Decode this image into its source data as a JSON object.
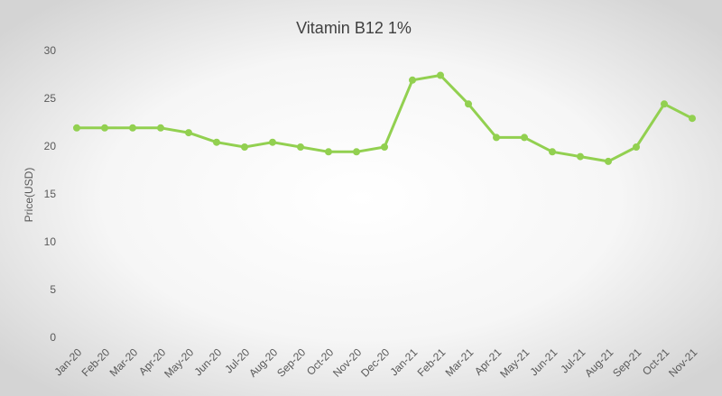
{
  "chart_data": {
    "type": "line",
    "title": "Vitamin B12 1%",
    "y_label": "Price(USD)",
    "categories": [
      "Jan-20",
      "Feb-20",
      "Mar-20",
      "Apr-20",
      "May-20",
      "Jun-20",
      "Jul-20",
      "Aug-20",
      "Sep-20",
      "Oct-20",
      "Nov-20",
      "Dec-20",
      "Jan-21",
      "Feb-21",
      "Mar-21",
      "Apr-21",
      "May-21",
      "Jun-21",
      "Jul-21",
      "Aug-21",
      "Sep-21",
      "Oct-21",
      "Nov-21"
    ],
    "values": [
      22,
      22,
      22,
      22,
      21.5,
      20.5,
      20,
      20.5,
      20,
      19.5,
      19.5,
      20,
      27,
      27.5,
      24.5,
      21,
      21,
      19.5,
      19,
      18.5,
      20,
      24.5,
      23
    ],
    "color": "#92d050",
    "ylim": [
      0,
      30
    ],
    "yticks": [
      0,
      5,
      10,
      15,
      20,
      25,
      30
    ],
    "grid": false
  }
}
